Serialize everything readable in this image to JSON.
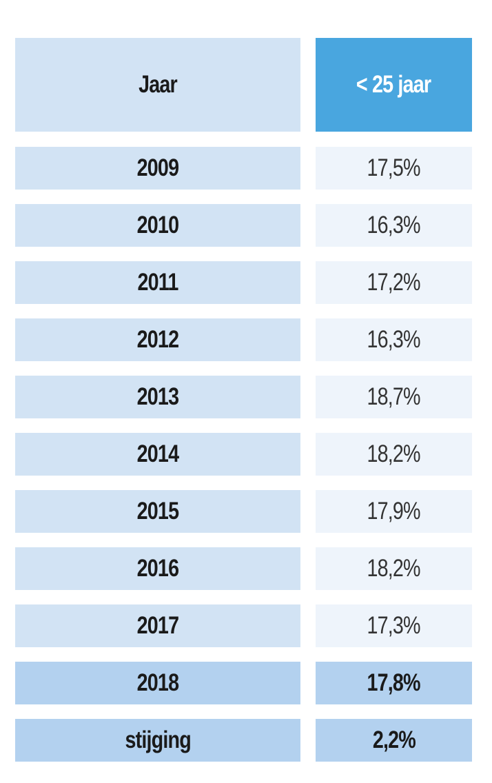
{
  "table": {
    "header": [
      "Jaar",
      "< 25 jaar"
    ],
    "rows": [
      [
        "2009",
        "17,5%"
      ],
      [
        "2010",
        "16,3%"
      ],
      [
        "2011",
        "17,2%"
      ],
      [
        "2012",
        "16,3%"
      ],
      [
        "2013",
        "18,7%"
      ],
      [
        "2014",
        "18,2%"
      ],
      [
        "2015",
        "17,9%"
      ],
      [
        "2016",
        "18,2%"
      ],
      [
        "2017",
        "17,3%"
      ],
      [
        "2018",
        "17,8%"
      ],
      [
        "stijging",
        "2,2%"
      ]
    ]
  }
}
